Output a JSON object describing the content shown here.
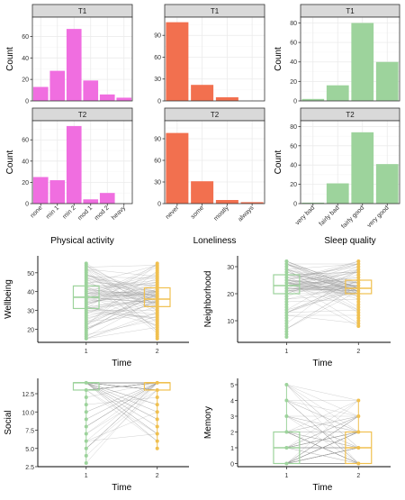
{
  "chart_data": [
    {
      "type": "bar",
      "color": "#f06ee0",
      "xlabel": "Physical activity",
      "ylabel": "Count",
      "categories": [
        "none",
        "min 1",
        "min 2",
        "mod 1",
        "mod 2",
        "heavy"
      ],
      "yticks": [
        0,
        20,
        40,
        60
      ],
      "ylim": [
        0,
        78
      ],
      "panels": [
        {
          "strip": "T1",
          "values": [
            13,
            28,
            67,
            19,
            6,
            3
          ]
        },
        {
          "strip": "T2",
          "values": [
            25,
            22,
            73,
            4,
            10,
            0
          ]
        }
      ]
    },
    {
      "type": "bar",
      "color": "#f2704f",
      "xlabel": "Loneliness",
      "ylabel": "",
      "categories": [
        "never",
        "some",
        "mostly",
        "always"
      ],
      "yticks": [
        0,
        30,
        60,
        90
      ],
      "ylim": [
        0,
        115
      ],
      "panels": [
        {
          "strip": "T1",
          "values": [
            108,
            22,
            5,
            0
          ]
        },
        {
          "strip": "T2",
          "values": [
            98,
            31,
            5,
            2
          ]
        }
      ]
    },
    {
      "type": "bar",
      "color": "#9dd39c",
      "xlabel": "Sleep quality",
      "ylabel": "Count",
      "categories": [
        "very bad",
        "fairly bad",
        "fairly good",
        "very good"
      ],
      "yticks": [
        0,
        20,
        40,
        60,
        80
      ],
      "ylim": [
        0,
        86
      ],
      "panels": [
        {
          "strip": "T1",
          "values": [
            2,
            16,
            80,
            40
          ]
        },
        {
          "strip": "T2",
          "values": [
            1,
            21,
            74,
            41
          ]
        }
      ]
    },
    {
      "type": "box",
      "ylabel": "Wellbeing",
      "xlabel": "Time",
      "categories": [
        "1",
        "2"
      ],
      "colors": [
        "#9dd39c",
        "#f0c050"
      ],
      "yticks": [
        20,
        30,
        40,
        50
      ],
      "ylim": [
        13,
        59
      ],
      "boxes": [
        {
          "min": 15,
          "q1": 31,
          "median": 37,
          "q3": 43,
          "max": 55
        },
        {
          "min": 15,
          "q1": 32,
          "median": 36,
          "q3": 42,
          "max": 55
        }
      ]
    },
    {
      "type": "box",
      "ylabel": "Neighborhood",
      "xlabel": "Time",
      "categories": [
        "1",
        "2"
      ],
      "colors": [
        "#9dd39c",
        "#f0c050"
      ],
      "yticks": [
        10,
        20,
        30
      ],
      "ylim": [
        2,
        34
      ],
      "boxes": [
        {
          "min": 4,
          "q1": 20,
          "median": 23,
          "q3": 27,
          "max": 32
        },
        {
          "min": 8,
          "q1": 20,
          "median": 22,
          "q3": 25,
          "max": 32
        }
      ]
    },
    {
      "type": "box",
      "ylabel": "Social",
      "xlabel": "Time",
      "categories": [
        "1",
        "2"
      ],
      "colors": [
        "#9dd39c",
        "#f0c050"
      ],
      "yticks": [
        2.5,
        5.0,
        7.5,
        10.0,
        12.5
      ],
      "ylim": [
        2.5,
        14.6
      ],
      "boxes": [
        {
          "min": 3,
          "q1": 13,
          "median": 14,
          "q3": 14,
          "max": 14
        },
        {
          "min": 5,
          "q1": 13,
          "median": 14,
          "q3": 14,
          "max": 14
        }
      ]
    },
    {
      "type": "box",
      "ylabel": "Memory",
      "xlabel": "Time",
      "categories": [
        "1",
        "2"
      ],
      "colors": [
        "#9dd39c",
        "#f0c050"
      ],
      "yticks": [
        0,
        1,
        2,
        3,
        4,
        5
      ],
      "ylim": [
        -0.2,
        5.4
      ],
      "boxes": [
        {
          "min": 0,
          "q1": 0,
          "median": 1,
          "q3": 2,
          "max": 5
        },
        {
          "min": 0,
          "q1": 0,
          "median": 1,
          "q3": 2,
          "max": 4
        }
      ]
    }
  ]
}
